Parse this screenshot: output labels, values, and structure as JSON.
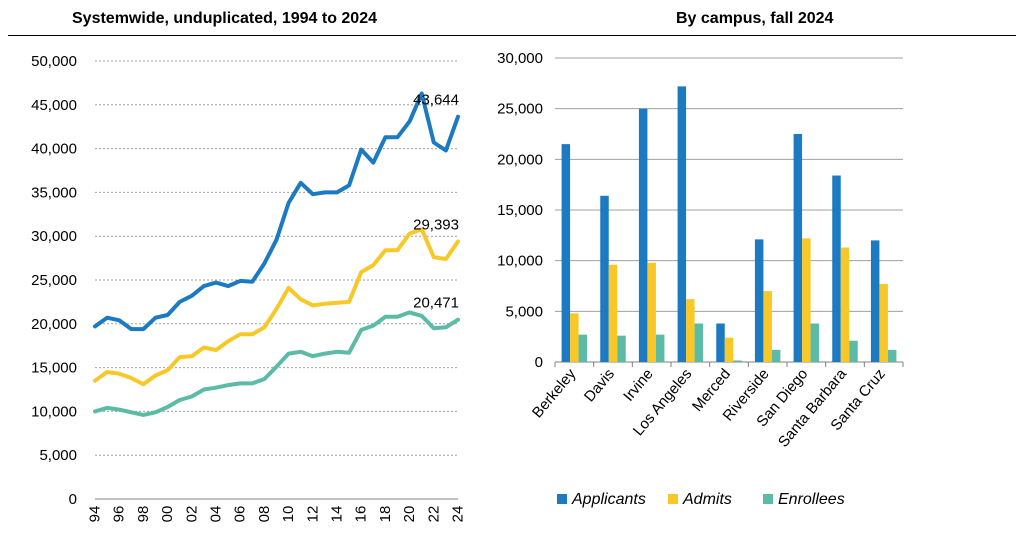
{
  "colors": {
    "applicants": "#1B7AC2",
    "admits": "#F7C827",
    "enrollees": "#5BBBA6",
    "grid": "#A0A0A0"
  },
  "chart_data": [
    {
      "type": "line",
      "title": "Systemwide, unduplicated, 1994 to 2024",
      "ylim": [
        0,
        50000
      ],
      "yticks": [
        0,
        5000,
        10000,
        15000,
        20000,
        25000,
        30000,
        35000,
        40000,
        45000,
        50000
      ],
      "ytick_labels": [
        "0",
        "5,000",
        "10,000",
        "15,000",
        "20,000",
        "25,000",
        "30,000",
        "35,000",
        "40,000",
        "45,000",
        "50,000"
      ],
      "x": [
        1994,
        1995,
        1996,
        1997,
        1998,
        1999,
        2000,
        2001,
        2002,
        2003,
        2004,
        2005,
        2006,
        2007,
        2008,
        2009,
        2010,
        2011,
        2012,
        2013,
        2014,
        2015,
        2016,
        2017,
        2018,
        2019,
        2020,
        2021,
        2022,
        2023,
        2024
      ],
      "xtick_years": [
        1994,
        1996,
        1998,
        2000,
        2002,
        2004,
        2006,
        2008,
        2010,
        2012,
        2014,
        2016,
        2018,
        2020,
        2022,
        2024
      ],
      "xtick_labels": [
        "94",
        "96",
        "98",
        "00",
        "02",
        "04",
        "06",
        "08",
        "10",
        "12",
        "14",
        "16",
        "18",
        "20",
        "22",
        "24"
      ],
      "series": [
        {
          "name": "Applicants",
          "color_key": "applicants",
          "values": [
            19700,
            20700,
            20400,
            19400,
            19400,
            20700,
            21000,
            22500,
            23200,
            24300,
            24700,
            24300,
            24900,
            24800,
            26900,
            29600,
            33800,
            36100,
            34800,
            35000,
            35000,
            35800,
            39900,
            38400,
            41300,
            41300,
            43100,
            46300,
            40700,
            39800,
            43644
          ]
        },
        {
          "name": "Admits",
          "color_key": "admits",
          "values": [
            13500,
            14500,
            14300,
            13800,
            13100,
            14100,
            14700,
            16200,
            16300,
            17300,
            17000,
            18000,
            18800,
            18800,
            19600,
            21700,
            24100,
            22800,
            22100,
            22300,
            22400,
            22500,
            25900,
            26700,
            28400,
            28400,
            30300,
            30800,
            27600,
            27400,
            29393
          ]
        },
        {
          "name": "Enrollees",
          "color_key": "enrollees",
          "values": [
            10000,
            10400,
            10200,
            9900,
            9600,
            9900,
            10500,
            11300,
            11700,
            12500,
            12700,
            13000,
            13200,
            13200,
            13700,
            15100,
            16600,
            16800,
            16300,
            16600,
            16800,
            16700,
            19300,
            19800,
            20800,
            20800,
            21300,
            20900,
            19500,
            19600,
            20471
          ]
        }
      ],
      "data_labels": [
        {
          "series": 0,
          "text": "43,644"
        },
        {
          "series": 1,
          "text": "29,393"
        },
        {
          "series": 2,
          "text": "20,471"
        }
      ]
    },
    {
      "type": "bar",
      "title": "By campus, fall 2024",
      "ylim": [
        0,
        30000
      ],
      "yticks": [
        0,
        5000,
        10000,
        15000,
        20000,
        25000,
        30000
      ],
      "ytick_labels": [
        "0",
        "5,000",
        "10,000",
        "15,000",
        "20,000",
        "25,000",
        "30,000"
      ],
      "categories": [
        "Berkeley",
        "Davis",
        "Irvine",
        "Los Angeles",
        "Merced",
        "Riverside",
        "San Diego",
        "Santa Barbara",
        "Santa Cruz"
      ],
      "series": [
        {
          "name": "Applicants",
          "color_key": "applicants",
          "values": [
            21500,
            16400,
            25000,
            27200,
            3800,
            12100,
            22500,
            18400,
            12000
          ]
        },
        {
          "name": "Admits",
          "color_key": "admits",
          "values": [
            4800,
            9600,
            9800,
            6200,
            2400,
            7000,
            12200,
            11300,
            7700
          ]
        },
        {
          "name": "Enrollees",
          "color_key": "enrollees",
          "values": [
            2700,
            2600,
            2700,
            3800,
            150,
            1200,
            3800,
            2100,
            1200
          ]
        }
      ]
    }
  ]
}
